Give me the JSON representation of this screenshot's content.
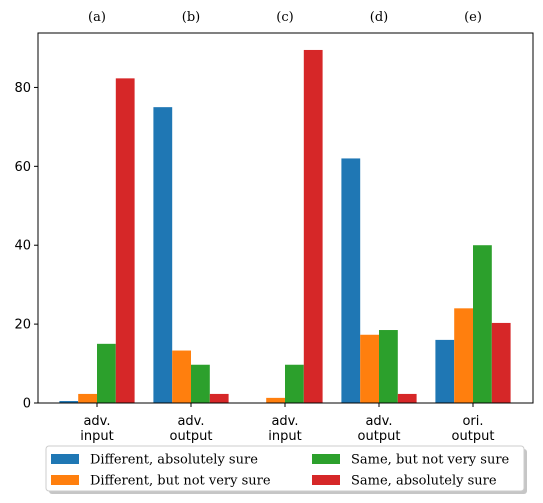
{
  "chart_data": {
    "type": "bar",
    "panel_labels": [
      "(a)",
      "(b)",
      "(c)",
      "(d)",
      "(e)"
    ],
    "categories": [
      [
        "adv.",
        "input"
      ],
      [
        "adv.",
        "output"
      ],
      [
        "adv.",
        "input"
      ],
      [
        "adv.",
        "output"
      ],
      [
        "ori.",
        "output"
      ]
    ],
    "series": [
      {
        "name": "Different, absolutely sure",
        "color": "#1f77b4",
        "values": [
          0.5,
          75.0,
          0.0,
          62.0,
          16.0
        ]
      },
      {
        "name": "Different, but not very sure",
        "color": "#ff7f0e",
        "values": [
          2.3,
          13.3,
          1.3,
          17.3,
          24.0
        ]
      },
      {
        "name": "Same, but not very sure",
        "color": "#2ca02c",
        "values": [
          15.0,
          9.7,
          9.7,
          18.5,
          40.0
        ]
      },
      {
        "name": "Same, absolutely sure",
        "color": "#d62728",
        "values": [
          82.3,
          2.3,
          89.5,
          2.3,
          20.3
        ]
      }
    ],
    "ylim": [
      0,
      93.8
    ],
    "yticks": [
      "0",
      "20",
      "40",
      "60",
      "80"
    ],
    "grid": false,
    "legend_placement": "bottom-center"
  }
}
